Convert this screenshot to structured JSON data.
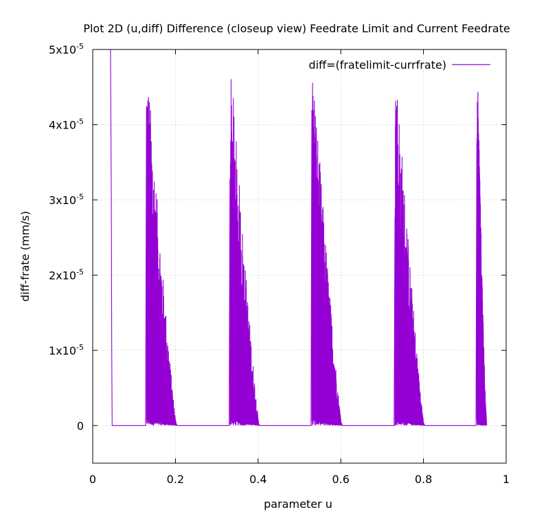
{
  "chart_data": {
    "type": "line",
    "title": "Plot 2D (u,diff) Difference (closeup view) Feedrate Limit and Current Feedrate",
    "xlabel": "parameter u",
    "ylabel": "diff-frate (mm/s)",
    "xlim": [
      0,
      1
    ],
    "ylim": [
      -5e-06,
      5e-05
    ],
    "x_ticks": [
      {
        "value": 0,
        "label": "0"
      },
      {
        "value": 0.2,
        "label": "0.2"
      },
      {
        "value": 0.4,
        "label": "0.4"
      },
      {
        "value": 0.6,
        "label": "0.6"
      },
      {
        "value": 0.8,
        "label": "0.8"
      },
      {
        "value": 1,
        "label": "1"
      }
    ],
    "y_ticks": [
      {
        "value": 0,
        "base": "0",
        "exp": ""
      },
      {
        "value": 1e-05,
        "base": "1x10",
        "exp": "-5"
      },
      {
        "value": 2e-05,
        "base": "2x10",
        "exp": "-5"
      },
      {
        "value": 3e-05,
        "base": "3x10",
        "exp": "-5"
      },
      {
        "value": 4e-05,
        "base": "4x10",
        "exp": "-5"
      },
      {
        "value": 5e-05,
        "base": "5x10",
        "exp": "-5"
      }
    ],
    "grid": true,
    "legend_position": "top-right",
    "series": [
      {
        "name": "diff=(fratelimit-currfrate)",
        "color": "#9400d3",
        "x": [
          0.043,
          0.045,
          0.046,
          0.047,
          0.128,
          0.129,
          0.13,
          0.202,
          0.204,
          0.33,
          0.331,
          0.332,
          0.402,
          0.404,
          0.528,
          0.529,
          0.53,
          0.602,
          0.604,
          0.729,
          0.73,
          0.731,
          0.801,
          0.803,
          0.927,
          0.928,
          0.93,
          0.951,
          0.953
        ],
        "y": [
          5e-05,
          3e-05,
          1e-05,
          0,
          0,
          3e-06,
          0,
          5e-07,
          0,
          0,
          1e-05,
          0,
          5e-07,
          0,
          0,
          1e-05,
          0,
          5e-07,
          0,
          0,
          1e-05,
          0,
          5e-07,
          0,
          0,
          1e-05,
          0,
          1e-06,
          0
        ],
        "oscillation_bursts": [
          {
            "u_start": 0.13,
            "u_end": 0.202,
            "peak_max": 5e-05,
            "decay_to": 3e-07
          },
          {
            "u_start": 0.332,
            "u_end": 0.402,
            "peak_max": 5e-05,
            "decay_to": 3e-07
          },
          {
            "u_start": 0.53,
            "u_end": 0.602,
            "peak_max": 5e-05,
            "decay_to": 3e-07
          },
          {
            "u_start": 0.731,
            "u_end": 0.801,
            "peak_max": 5e-05,
            "decay_to": 3e-07
          },
          {
            "u_start": 0.929,
            "u_end": 0.951,
            "peak_max": 5e-05,
            "decay_to": 2e-06
          }
        ]
      }
    ]
  }
}
